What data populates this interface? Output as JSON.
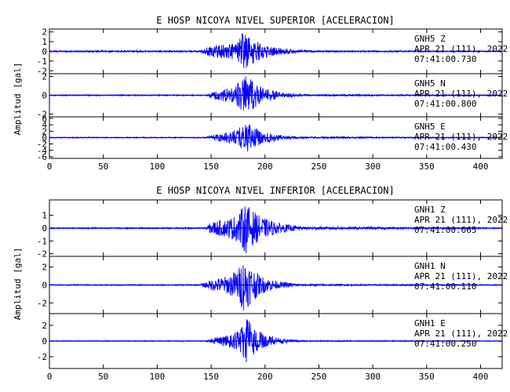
{
  "chart_data": [
    {
      "type": "line",
      "title": "E HOSP NICOYA NIVEL SUPERIOR [ACELERACION]",
      "ylabel": "Amplitud  [gal]",
      "xlabel": "",
      "xlim": [
        0,
        420
      ],
      "x_ticks": [
        0,
        50,
        100,
        150,
        200,
        250,
        300,
        350,
        400
      ],
      "color": "#0000ff",
      "series": [
        {
          "name": "GNH5  Z",
          "info": [
            "GNH5  Z",
            "APR 21 (111), 2022",
            "07:41:00.730"
          ],
          "ylim": [
            -2.3,
            2.3
          ],
          "y_ticks": [
            -2,
            -1,
            0,
            1,
            2
          ],
          "tick_labels": [
            "-2",
            "-1",
            "0",
            "1",
            "2"
          ],
          "noise": 0.08,
          "env": [
            [
              140,
              0.08
            ],
            [
              150,
              0.6
            ],
            [
              165,
              0.8
            ],
            [
              175,
              1.0
            ],
            [
              180,
              2.2
            ],
            [
              185,
              1.6
            ],
            [
              195,
              0.9
            ],
            [
              210,
              0.4
            ],
            [
              230,
              0.15
            ],
            [
              250,
              0.08
            ],
            [
              420,
              0.06
            ]
          ]
        },
        {
          "name": "GNH5  N",
          "info": [
            "GNH5  N",
            "APR 21 (111), 2022",
            "07:41:00.800"
          ],
          "ylim": [
            -2.3,
            2.3
          ],
          "y_ticks": [
            -2,
            0,
            2
          ],
          "tick_labels": [
            "-2",
            "0",
            "2"
          ],
          "noise": 0.06,
          "env": [
            [
              145,
              0.06
            ],
            [
              155,
              0.5
            ],
            [
              170,
              0.9
            ],
            [
              178,
              1.6
            ],
            [
              183,
              2.2
            ],
            [
              190,
              1.4
            ],
            [
              200,
              0.7
            ],
            [
              215,
              0.3
            ],
            [
              235,
              0.1
            ],
            [
              420,
              0.05
            ]
          ]
        },
        {
          "name": "GNH5  E",
          "info": [
            "GNH5  E",
            "APR 21 (111), 2022",
            "07:41:00.430"
          ],
          "ylim": [
            -6.5,
            6.5
          ],
          "y_ticks": [
            -6,
            -4,
            -2,
            0,
            2,
            4,
            6
          ],
          "tick_labels": [
            "-6",
            "-4",
            "-2",
            "0",
            "2",
            "4",
            "6"
          ],
          "noise": 0.15,
          "env": [
            [
              145,
              0.15
            ],
            [
              155,
              1.2
            ],
            [
              170,
              2.0
            ],
            [
              178,
              3.5
            ],
            [
              182,
              5.0
            ],
            [
              188,
              3.5
            ],
            [
              197,
              2.0
            ],
            [
              212,
              0.9
            ],
            [
              230,
              0.3
            ],
            [
              420,
              0.12
            ]
          ]
        }
      ]
    },
    {
      "type": "line",
      "title": "E HOSP NICOYA NIVEL INFERIOR [ACELERACION]",
      "ylabel": "Amplitud  [gal]",
      "xlabel": "",
      "xlim": [
        0,
        420
      ],
      "x_ticks": [
        0,
        50,
        100,
        150,
        200,
        250,
        300,
        350,
        400
      ],
      "color": "#0000ff",
      "series": [
        {
          "name": "GNH1  Z",
          "info": [
            "GNH1  Z",
            "APR 21 (111), 2022",
            "07:41:00.065"
          ],
          "ylim": [
            -2.2,
            2.2
          ],
          "y_ticks": [
            -2,
            -1,
            0,
            1
          ],
          "tick_labels": [
            "-2",
            "-1",
            "0",
            "1"
          ],
          "noise": 0.05,
          "env": [
            [
              145,
              0.05
            ],
            [
              150,
              0.5
            ],
            [
              165,
              0.7
            ],
            [
              175,
              1.1
            ],
            [
              182,
              2.0
            ],
            [
              188,
              1.4
            ],
            [
              198,
              0.8
            ],
            [
              215,
              0.35
            ],
            [
              235,
              0.12
            ],
            [
              420,
              0.04
            ]
          ]
        },
        {
          "name": "GNH1  N",
          "info": [
            "GNH1  N",
            "APR 21 (111), 2022",
            "07:41:00.110"
          ],
          "ylim": [
            -3.2,
            3.2
          ],
          "y_ticks": [
            -2,
            0,
            2
          ],
          "tick_labels": [
            "-2",
            "0",
            "2"
          ],
          "noise": 0.06,
          "env": [
            [
              140,
              0.06
            ],
            [
              150,
              0.6
            ],
            [
              165,
              1.0
            ],
            [
              175,
              1.8
            ],
            [
              180,
              3.0
            ],
            [
              186,
              2.2
            ],
            [
              196,
              1.0
            ],
            [
              212,
              0.4
            ],
            [
              235,
              0.1
            ],
            [
              420,
              0.05
            ]
          ]
        },
        {
          "name": "GNH1  E",
          "info": [
            "GNH1  E",
            "APR 21 (111), 2022",
            "07:41:00.250"
          ],
          "ylim": [
            -3.5,
            3.5
          ],
          "y_ticks": [
            -2,
            0,
            2
          ],
          "tick_labels": [
            "-2",
            "0",
            "2"
          ],
          "noise": 0.05,
          "env": [
            [
              145,
              0.05
            ],
            [
              155,
              0.5
            ],
            [
              170,
              0.9
            ],
            [
              178,
              1.6
            ],
            [
              183,
              3.0
            ],
            [
              190,
              1.8
            ],
            [
              200,
              0.8
            ],
            [
              215,
              0.3
            ],
            [
              235,
              0.08
            ],
            [
              420,
              0.04
            ]
          ]
        }
      ]
    }
  ]
}
